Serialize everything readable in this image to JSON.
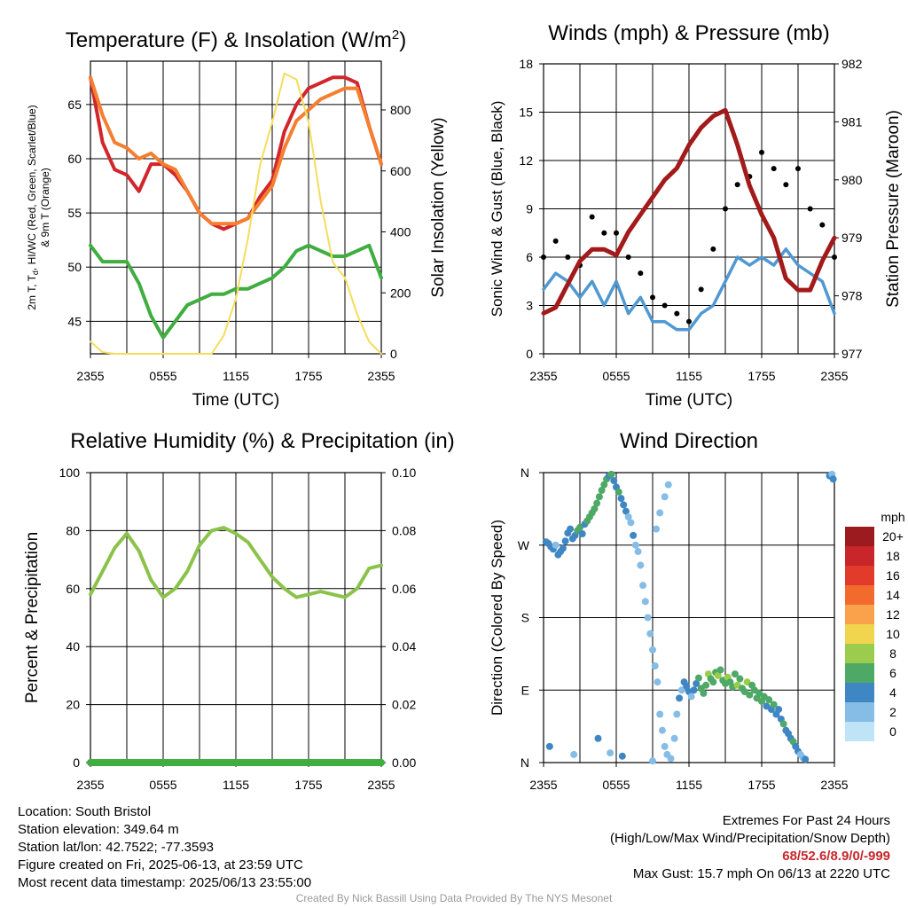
{
  "chart_data": [
    {
      "type": "line",
      "title": "Temperature (F) & Insolation (W/m",
      "title_sup": "2",
      "title_end": ")",
      "ylabel_line1": "2m T, T",
      "ylabel_sub": "d",
      "ylabel_line1_end": ", HI/WC (Red, Green, Scarlet/Blue)",
      "ylabel_line2": "& 9m T (Orange)",
      "y2label": "Solar Insolation (Yellow)",
      "xlabel": "Time (UTC)",
      "x_ticks": [
        "2355",
        "0555",
        "1155",
        "1755",
        "2355"
      ],
      "ylim": [
        42,
        69
      ],
      "yticks": [
        45,
        50,
        55,
        60,
        65
      ],
      "y2lim": [
        0,
        960
      ],
      "y2ticks": [
        0,
        200,
        400,
        600,
        800
      ],
      "x_hours": [
        0,
        1,
        2,
        3,
        4,
        5,
        6,
        7,
        8,
        9,
        10,
        11,
        12,
        13,
        14,
        15,
        16,
        17,
        18,
        19,
        20,
        21,
        22,
        23,
        24
      ],
      "series": [
        {
          "color": "#d1262b",
          "axis": "left",
          "values": [
            67.5,
            61.5,
            59.0,
            58.5,
            57.0,
            59.5,
            59.5,
            58.5,
            57.0,
            55.0,
            54.0,
            53.5,
            54.0,
            54.5,
            56.5,
            58.0,
            62.5,
            65.0,
            66.5,
            67.0,
            67.5,
            67.5,
            67.0,
            63.0,
            59.5
          ]
        },
        {
          "color": "#f57e30",
          "axis": "left",
          "values": [
            67.5,
            64.0,
            61.5,
            61.0,
            60.0,
            60.5,
            59.5,
            59.0,
            57.0,
            55.0,
            54.0,
            54.0,
            54.0,
            54.5,
            56.0,
            57.5,
            61.0,
            63.5,
            64.5,
            65.5,
            66.0,
            66.5,
            66.5,
            63.0,
            59.5
          ]
        },
        {
          "color": "#3fad3f",
          "axis": "left",
          "values": [
            52.0,
            50.5,
            50.5,
            50.5,
            48.5,
            45.5,
            43.5,
            45.0,
            46.5,
            47.0,
            47.5,
            47.5,
            48.0,
            48.0,
            48.5,
            49.0,
            50.0,
            51.5,
            52.0,
            51.5,
            51.0,
            51.0,
            51.5,
            52.0,
            49.0
          ]
        },
        {
          "color": "#f5dd5b",
          "axis": "right",
          "values": [
            40,
            5,
            0,
            0,
            0,
            0,
            0,
            0,
            0,
            0,
            0,
            60,
            180,
            380,
            620,
            760,
            920,
            900,
            760,
            500,
            300,
            250,
            130,
            40,
            0
          ]
        }
      ]
    },
    {
      "type": "scatter",
      "title": "Winds (mph) & Pressure (mb)",
      "ylabel": "Sonic Wind & Gust (Blue, Black)",
      "y2label": "Station Pressure (Maroon)",
      "xlabel": "Time (UTC)",
      "x_ticks": [
        "2355",
        "0555",
        "1155",
        "1755",
        "2355"
      ],
      "ylim": [
        0,
        18
      ],
      "yticks": [
        0,
        3,
        6,
        9,
        12,
        15,
        18
      ],
      "y2lim": [
        977,
        982
      ],
      "y2ticks": [
        977,
        978,
        979,
        980,
        981,
        982
      ],
      "x_hours": [
        0,
        1,
        2,
        3,
        4,
        5,
        6,
        7,
        8,
        9,
        10,
        11,
        12,
        13,
        14,
        15,
        16,
        17,
        18,
        19,
        20,
        21,
        22,
        23,
        24
      ],
      "series": [
        {
          "color": "#4f98d3",
          "axis": "left",
          "values": [
            4.0,
            5.0,
            4.5,
            3.5,
            4.5,
            3.0,
            4.5,
            2.5,
            3.5,
            2.0,
            2.0,
            1.5,
            1.5,
            2.5,
            3.0,
            4.5,
            6.0,
            5.5,
            6.0,
            5.5,
            6.5,
            5.5,
            5.0,
            4.5,
            2.5
          ]
        },
        {
          "color": "#000000",
          "axis": "left",
          "values": [
            6.0,
            7.0,
            6.0,
            5.5,
            8.5,
            7.5,
            7.5,
            6.0,
            5.0,
            3.5,
            3.0,
            2.5,
            2.0,
            4.0,
            6.5,
            9.0,
            10.5,
            11.0,
            12.5,
            11.5,
            10.5,
            11.5,
            9.0,
            8.0,
            6.0
          ]
        },
        {
          "color": "#a31a1a",
          "axis": "right",
          "values": [
            977.7,
            977.8,
            978.2,
            978.6,
            978.8,
            978.8,
            978.7,
            979.1,
            979.4,
            979.7,
            980.0,
            980.2,
            980.6,
            980.9,
            981.1,
            981.2,
            980.6,
            979.9,
            979.4,
            979.0,
            978.3,
            978.1,
            978.1,
            978.6,
            979.0
          ]
        }
      ]
    },
    {
      "type": "line",
      "title": "Relative Humidity (%) & Precipitation (in)",
      "ylabel": "Percent & Precipitation",
      "x_ticks": [
        "2355",
        "0555",
        "1155",
        "1755",
        "2355"
      ],
      "ylim": [
        0,
        100
      ],
      "yticks": [
        0,
        20,
        40,
        60,
        80,
        100
      ],
      "y2lim": [
        0,
        0.1
      ],
      "y2ticks": [
        "0.00",
        "0.02",
        "0.04",
        "0.06",
        "0.08",
        "0.10"
      ],
      "x_hours": [
        0,
        1,
        2,
        3,
        4,
        5,
        6,
        7,
        8,
        9,
        10,
        11,
        12,
        13,
        14,
        15,
        16,
        17,
        18,
        19,
        20,
        21,
        22,
        23,
        24
      ],
      "series": [
        {
          "color": "#8bc34a",
          "axis": "left",
          "values": [
            58,
            66,
            74,
            79,
            73,
            63,
            57,
            60,
            66,
            75,
            80,
            81,
            79,
            76,
            70,
            64,
            60,
            57,
            58,
            59,
            58,
            57,
            60,
            67,
            68
          ]
        },
        {
          "color": "#3fad3f",
          "axis": "right",
          "values": [
            0,
            0,
            0,
            0,
            0,
            0,
            0,
            0,
            0,
            0,
            0,
            0,
            0,
            0,
            0,
            0,
            0,
            0,
            0,
            0,
            0,
            0,
            0,
            0,
            0
          ]
        }
      ]
    },
    {
      "type": "scatter",
      "title": "Wind Direction",
      "ylabel": "Direction (Colored By Speed)",
      "x_ticks": [
        "2355",
        "0555",
        "1155",
        "1755",
        "2355"
      ],
      "y_ticks": [
        "N",
        "E",
        "S",
        "W",
        "N"
      ],
      "ylim": [
        0,
        360
      ],
      "legend_title": "mph",
      "legend_labels": [
        "20+",
        "18",
        "16",
        "14",
        "12",
        "10",
        "8",
        "6",
        "4",
        "2",
        "0"
      ],
      "legend_colors": [
        "#9c1b1e",
        "#c8262b",
        "#e23b2c",
        "#f26a2e",
        "#f9a24b",
        "#f1d54e",
        "#9ccc4d",
        "#4ea866",
        "#3f86c4",
        "#85bde6",
        "#bfe3f7"
      ],
      "points": [
        [
          0.2,
          274,
          4
        ],
        [
          0.4,
          272,
          3
        ],
        [
          0.6,
          268,
          4
        ],
        [
          0.8,
          265,
          3
        ],
        [
          1.0,
          270,
          2
        ],
        [
          1.2,
          258,
          4
        ],
        [
          1.4,
          262,
          3
        ],
        [
          1.6,
          266,
          4
        ],
        [
          1.8,
          275,
          3
        ],
        [
          2.0,
          285,
          4
        ],
        [
          2.2,
          290,
          3
        ],
        [
          2.4,
          278,
          4
        ],
        [
          2.6,
          282,
          4
        ],
        [
          2.8,
          288,
          5
        ],
        [
          3.0,
          292,
          5
        ],
        [
          3.2,
          284,
          4
        ],
        [
          3.4,
          296,
          4
        ],
        [
          3.6,
          300,
          6
        ],
        [
          3.8,
          305,
          5
        ],
        [
          4.0,
          310,
          6
        ],
        [
          4.2,
          315,
          5
        ],
        [
          4.4,
          322,
          6
        ],
        [
          4.6,
          330,
          5
        ],
        [
          4.8,
          338,
          6
        ],
        [
          5.0,
          345,
          6
        ],
        [
          5.2,
          352,
          5
        ],
        [
          5.4,
          356,
          4
        ],
        [
          5.6,
          358,
          5
        ],
        [
          5.8,
          350,
          3
        ],
        [
          6.0,
          342,
          4
        ],
        [
          6.2,
          336,
          5
        ],
        [
          6.4,
          328,
          3
        ],
        [
          6.6,
          320,
          4
        ],
        [
          6.8,
          312,
          3
        ],
        [
          7.0,
          305,
          2
        ],
        [
          7.2,
          298,
          2
        ],
        [
          7.4,
          282,
          3
        ],
        [
          7.6,
          270,
          2
        ],
        [
          7.8,
          262,
          2
        ],
        [
          8.0,
          245,
          1
        ],
        [
          8.2,
          220,
          2
        ],
        [
          8.4,
          200,
          1
        ],
        [
          8.6,
          180,
          1
        ],
        [
          8.8,
          160,
          2
        ],
        [
          9.0,
          140,
          1
        ],
        [
          9.2,
          120,
          2
        ],
        [
          9.4,
          100,
          1
        ],
        [
          9.6,
          60,
          1
        ],
        [
          9.8,
          40,
          2
        ],
        [
          10.0,
          20,
          1
        ],
        [
          10.2,
          10,
          1
        ],
        [
          10.5,
          5,
          1
        ],
        [
          10.8,
          30,
          2
        ],
        [
          11.0,
          60,
          2
        ],
        [
          11.2,
          80,
          3
        ],
        [
          11.4,
          90,
          2
        ],
        [
          11.6,
          100,
          4
        ],
        [
          11.8,
          95,
          3
        ],
        [
          12.0,
          88,
          4
        ],
        [
          12.2,
          82,
          2
        ],
        [
          12.4,
          90,
          4
        ],
        [
          12.6,
          98,
          3
        ],
        [
          12.8,
          105,
          5
        ],
        [
          13.0,
          92,
          6
        ],
        [
          13.2,
          86,
          5
        ],
        [
          13.4,
          96,
          6
        ],
        [
          13.6,
          110,
          7
        ],
        [
          13.8,
          104,
          6
        ],
        [
          14.0,
          100,
          5
        ],
        [
          14.2,
          112,
          6
        ],
        [
          14.4,
          108,
          7
        ],
        [
          14.6,
          115,
          6
        ],
        [
          14.8,
          102,
          5
        ],
        [
          15.0,
          98,
          6
        ],
        [
          15.2,
          106,
          7
        ],
        [
          15.4,
          100,
          6
        ],
        [
          15.6,
          94,
          5
        ],
        [
          15.8,
          110,
          6
        ],
        [
          16.0,
          96,
          7
        ],
        [
          16.2,
          104,
          6
        ],
        [
          16.4,
          92,
          5
        ],
        [
          16.6,
          88,
          6
        ],
        [
          16.8,
          100,
          7
        ],
        [
          17.0,
          84,
          6
        ],
        [
          17.2,
          96,
          5
        ],
        [
          17.4,
          90,
          6
        ],
        [
          17.6,
          80,
          5
        ],
        [
          17.8,
          86,
          6
        ],
        [
          18.0,
          76,
          5
        ],
        [
          18.2,
          82,
          6
        ],
        [
          18.4,
          70,
          4
        ],
        [
          18.6,
          78,
          5
        ],
        [
          18.8,
          66,
          4
        ],
        [
          19.0,
          72,
          5
        ],
        [
          19.2,
          60,
          4
        ],
        [
          19.4,
          66,
          3
        ],
        [
          19.6,
          54,
          4
        ],
        [
          19.8,
          48,
          5
        ],
        [
          20.0,
          40,
          4
        ],
        [
          20.2,
          36,
          3
        ],
        [
          20.4,
          30,
          4
        ],
        [
          20.6,
          26,
          5
        ],
        [
          20.8,
          20,
          4
        ],
        [
          21.0,
          14,
          3
        ],
        [
          21.2,
          10,
          2
        ],
        [
          21.4,
          6,
          2
        ],
        [
          21.6,
          4,
          3
        ],
        [
          23.6,
          356,
          3
        ],
        [
          23.8,
          358,
          2
        ],
        [
          23.9,
          352,
          3
        ],
        [
          0.5,
          20,
          3
        ],
        [
          2.5,
          10,
          2
        ],
        [
          4.5,
          30,
          4
        ],
        [
          5.5,
          12,
          2
        ],
        [
          6.5,
          8,
          3
        ],
        [
          9.0,
          2,
          1
        ],
        [
          10.0,
          330,
          1
        ],
        [
          10.3,
          345,
          1
        ],
        [
          9.6,
          310,
          1
        ],
        [
          9.3,
          290,
          1
        ]
      ]
    }
  ],
  "footer_left": [
    "Location: South Bristol",
    "Station elevation: 349.64 m",
    "Station lat/lon: 42.7522; -77.3593",
    "Figure created on Fri, 2025-06-13, at 23:59 UTC",
    "Most recent data timestamp: 2025/06/13 23:55:00"
  ],
  "footer_right": {
    "line1": "Extremes For Past 24 Hours",
    "line2": "(High/Low/Max Wind/Precipitation/Snow Depth)",
    "values": "68/52.6/8.9/0/-999",
    "line4": "Max Gust: 15.7 mph On 06/13 at 2220 UTC"
  },
  "credit": "Created By Nick Bassill Using Data Provided By The NYS Mesonet"
}
